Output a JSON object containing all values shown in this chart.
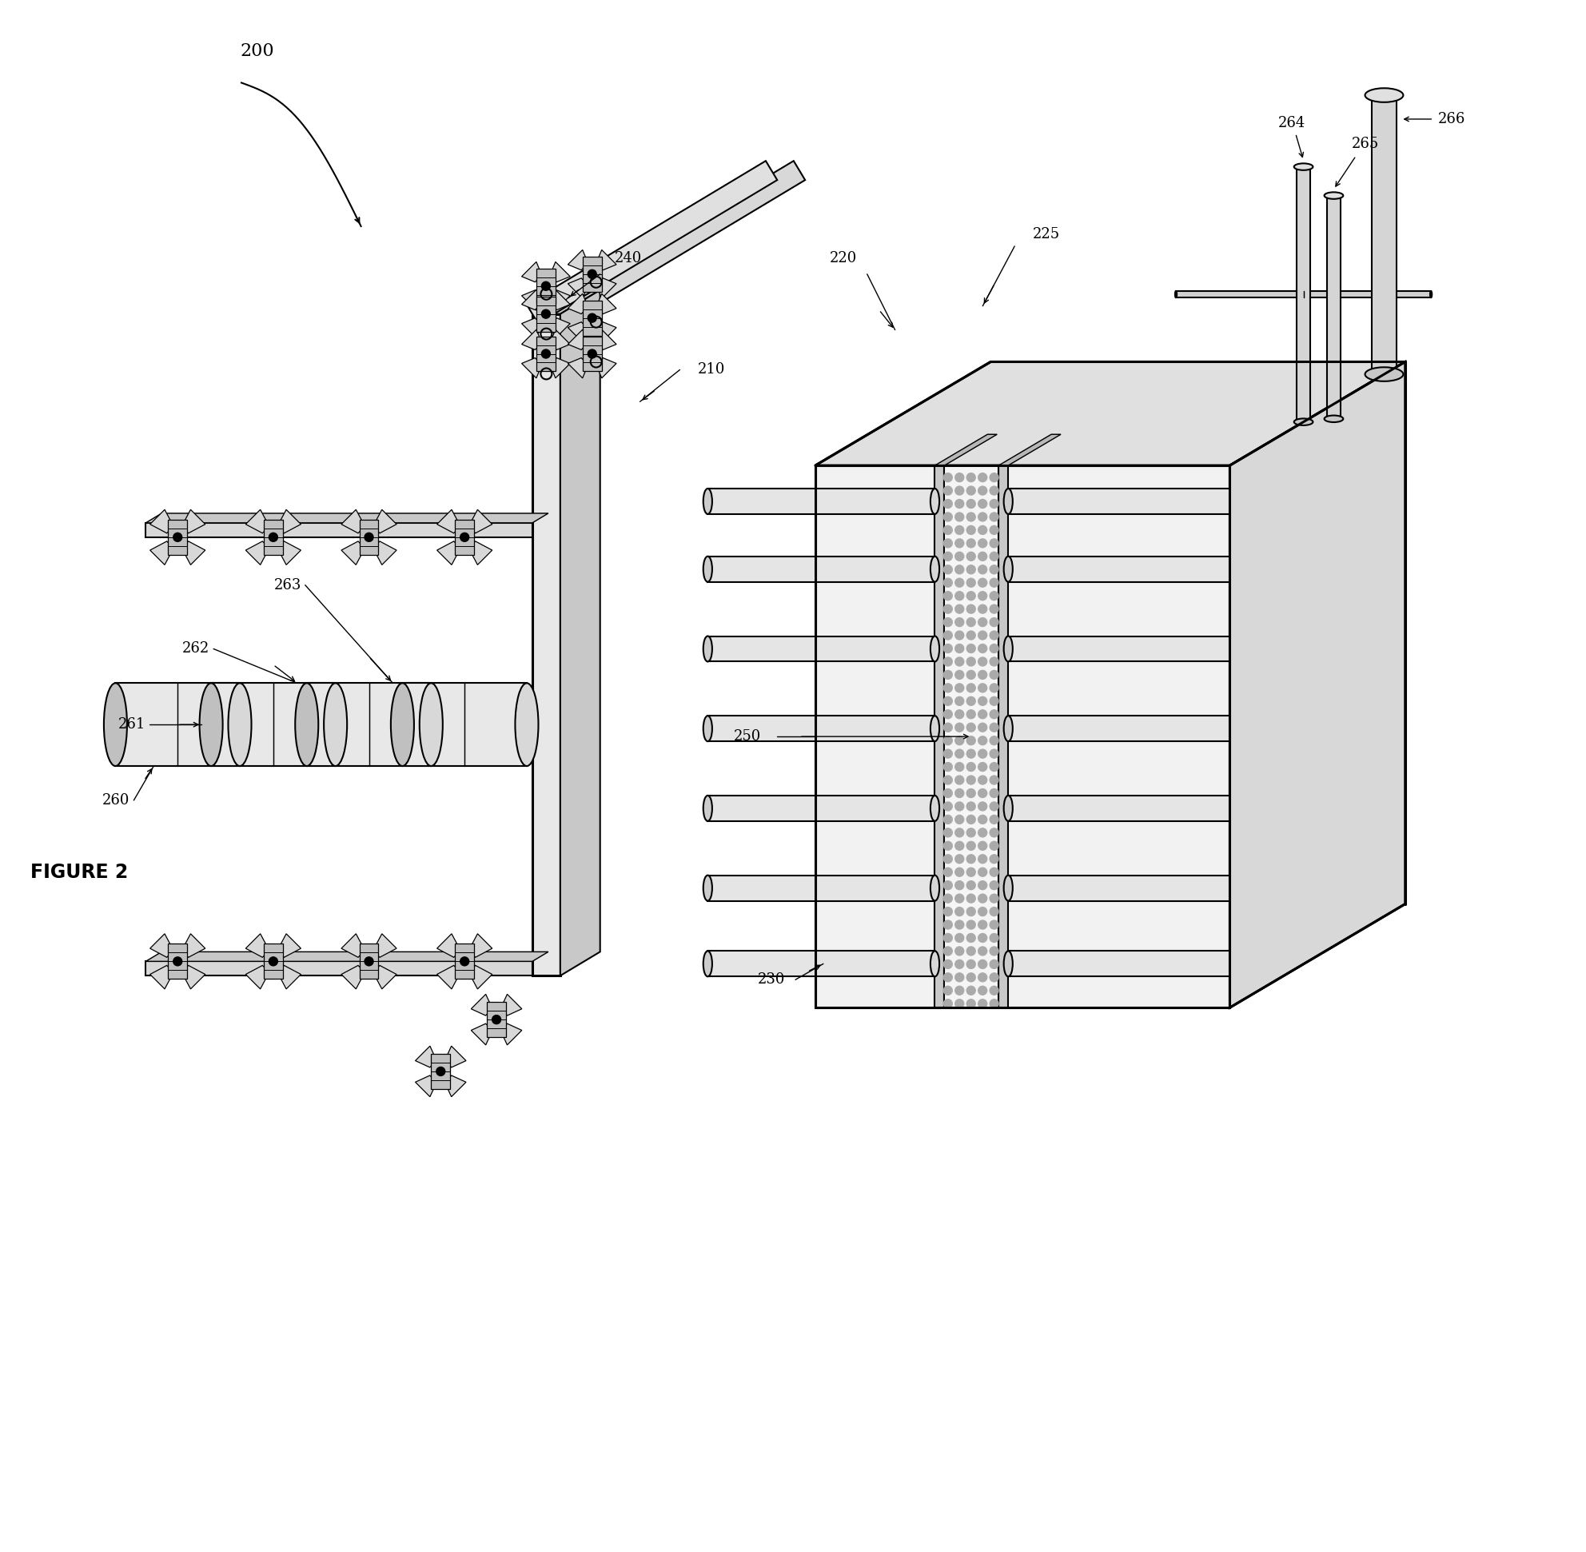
{
  "figure_label": "FIGURE 2",
  "bg_color": "#ffffff",
  "line_color": "#000000",
  "label_200": "200",
  "label_210": "210",
  "label_220": "220",
  "label_225": "225",
  "label_230": "230",
  "label_240": "240",
  "label_250": "250",
  "label_260": "260",
  "label_261": "261",
  "label_262": "262",
  "label_263": "263",
  "label_264": "264",
  "label_265": "265",
  "label_266": "266",
  "lw": 1.5,
  "lw_thick": 2.2,
  "font_size_labels": 13,
  "font_size_figure": 17
}
